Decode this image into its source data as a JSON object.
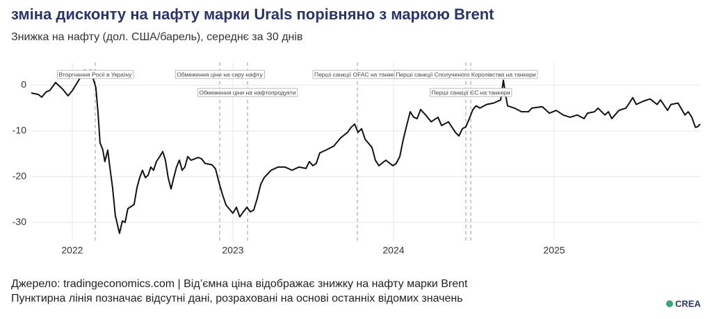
{
  "chart_data": {
    "type": "line",
    "title": "зміна дисконту на нафту марки Urals порівняно з маркою Brent",
    "subtitle": "Знижка на нафту (дол. США/барель), середнє за 30 днів",
    "source": "Джерело: tradingeconomics.com | Від’ємна ціна відображає знижку на нафту марки Brent",
    "note": "Пунктирна лінія позначає відсутні дані, розраховані на основі останніх відомих значень",
    "logo": "CREA",
    "color": "#111111",
    "grid": true,
    "xlim": [
      2021.745,
      2025.909
    ],
    "xticks": [
      2022,
      2023,
      2024,
      2025
    ],
    "ylim": [
      -34,
      5
    ],
    "yticks": [
      -30,
      -20,
      -10,
      0
    ],
    "events": [
      {
        "x": 2022.143,
        "label": "Вторгнення Росії в Україну"
      },
      {
        "x": 2022.918,
        "label": "Обмеження ціни на сиру нафту"
      },
      {
        "x": 2023.091,
        "label": "Обмеження ціни на нафтопродукти"
      },
      {
        "x": 2023.775,
        "label": "Перші санкції OFAC на танкери"
      },
      {
        "x": 2024.45,
        "label": "Перші санкції Сполученого Королівства на танкери"
      },
      {
        "x": 2024.481,
        "label": "Перші санкції ЄС на танкери"
      }
    ],
    "x": [
      2021.745,
      2021.788,
      2021.81,
      2021.836,
      2021.861,
      2021.896,
      2021.939,
      2021.974,
      2022.0,
      2022.026,
      2022.052,
      2022.078,
      2022.095,
      2022.113,
      2022.13,
      2022.147,
      2022.16,
      2022.173,
      2022.19,
      2022.203,
      2022.221,
      2022.234,
      2022.251,
      2022.268,
      2022.294,
      2022.312,
      2022.329,
      2022.346,
      2022.385,
      2022.403,
      2022.42,
      2022.437,
      2022.455,
      2022.472,
      2022.489,
      2022.506,
      2022.524,
      2022.545,
      2022.563,
      2022.58,
      2022.597,
      2022.615,
      2022.632,
      2022.649,
      2022.667,
      2022.684,
      2022.701,
      2022.719,
      2022.74,
      2022.784,
      2022.805,
      2022.827,
      2022.87,
      2022.892,
      2022.913,
      2022.935,
      2022.957,
      2023.0,
      2023.022,
      2023.043,
      2023.065,
      2023.087,
      2023.108,
      2023.13,
      2023.152,
      2023.173,
      2023.195,
      2023.238,
      2023.281,
      2023.325,
      2023.368,
      2023.411,
      2023.455,
      2023.476,
      2023.498,
      2023.519,
      2023.541,
      2023.584,
      2023.628,
      2023.671,
      2023.714,
      2023.736,
      2023.758,
      2023.779,
      2023.801,
      2023.823,
      2023.866,
      2023.887,
      2023.909,
      2023.952,
      2023.996,
      2024.017,
      2024.039,
      2024.061,
      2024.082,
      2024.104,
      2024.126,
      2024.147,
      2024.169,
      2024.212,
      2024.234,
      2024.277,
      2024.299,
      2024.342,
      2024.385,
      2024.407,
      2024.429,
      2024.45,
      2024.472,
      2024.494,
      2024.515,
      2024.537,
      2024.58,
      2024.623,
      2024.667,
      2024.684,
      2024.697,
      2024.71,
      2024.753,
      2024.797,
      2024.84,
      2024.861,
      2024.926,
      2024.97,
      2025.013,
      2025.056,
      2025.1,
      2025.143,
      2025.186,
      2025.208,
      2025.251,
      2025.273,
      2025.316,
      2025.338,
      2025.359,
      2025.403,
      2025.446,
      2025.468,
      2025.489,
      2025.511,
      2025.554,
      2025.597,
      2025.641,
      2025.662,
      2025.706,
      2025.727,
      2025.771,
      2025.814,
      2025.835,
      2025.857,
      2025.879,
      2025.892,
      2025.909
    ],
    "values": [
      -1.7,
      -2.0,
      -2.6,
      -1.5,
      -1.1,
      0.6,
      -0.8,
      -2.3,
      -1.2,
      0.3,
      1.8,
      3.3,
      2.9,
      3.3,
      1.5,
      -0.5,
      -5.8,
      -12.6,
      -14.1,
      -16.7,
      -14.2,
      -17.9,
      -22.4,
      -28.5,
      -32.4,
      -29.7,
      -30.0,
      -27.0,
      -26.1,
      -22.4,
      -20.2,
      -18.6,
      -20.2,
      -19.7,
      -17.9,
      -18.6,
      -16.7,
      -15.6,
      -14.5,
      -16.4,
      -20.2,
      -22.7,
      -20.2,
      -17.9,
      -16.4,
      -18.6,
      -17.9,
      -15.6,
      -16.4,
      -15.8,
      -16.1,
      -17.1,
      -17.4,
      -18.3,
      -21.2,
      -23.9,
      -26.2,
      -28.0,
      -26.7,
      -28.8,
      -27.7,
      -26.7,
      -27.7,
      -27.3,
      -24.7,
      -21.7,
      -20.2,
      -18.6,
      -17.9,
      -17.9,
      -18.6,
      -17.9,
      -18.2,
      -16.7,
      -17.6,
      -17.1,
      -14.8,
      -14.1,
      -13.3,
      -11.5,
      -10.3,
      -9.2,
      -8.5,
      -10.3,
      -9.5,
      -11.8,
      -13.6,
      -16.4,
      -17.6,
      -16.4,
      -17.6,
      -17.1,
      -15.6,
      -11.8,
      -8.8,
      -5.8,
      -7.0,
      -7.3,
      -5.3,
      -7.0,
      -8.0,
      -7.0,
      -8.8,
      -8.0,
      -10.3,
      -11.1,
      -9.5,
      -9.1,
      -7.3,
      -5.3,
      -4.5,
      -5.0,
      -4.2,
      -3.9,
      -3.2,
      1.1,
      -2.0,
      -4.5,
      -5.0,
      -5.8,
      -5.8,
      -5.0,
      -4.7,
      -6.1,
      -5.5,
      -6.5,
      -7.0,
      -6.5,
      -7.3,
      -6.1,
      -5.8,
      -5.0,
      -6.5,
      -5.8,
      -7.3,
      -5.5,
      -5.0,
      -3.9,
      -2.7,
      -4.2,
      -3.5,
      -3.0,
      -4.2,
      -3.2,
      -5.5,
      -4.2,
      -3.9,
      -6.5,
      -5.8,
      -7.0,
      -9.2,
      -9.1,
      -8.5
    ]
  }
}
